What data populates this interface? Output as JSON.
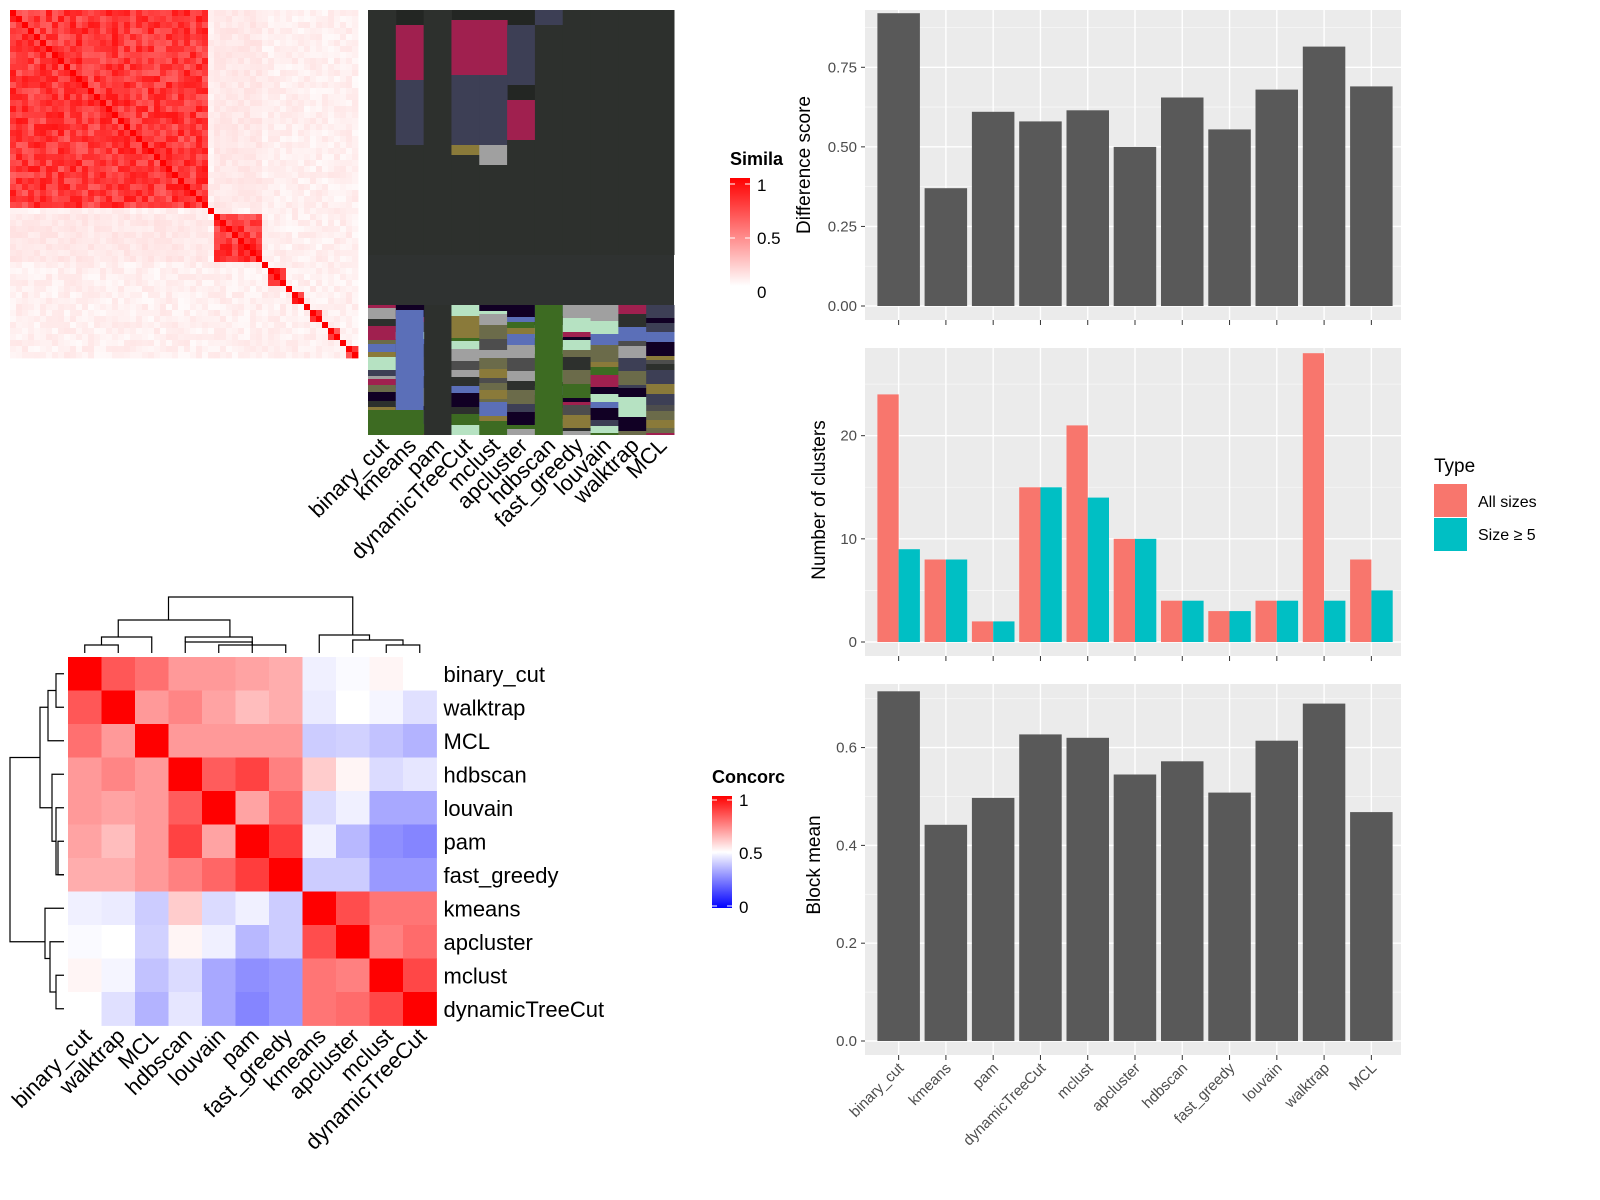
{
  "colors": {
    "panel_bg": "#ebebeb",
    "grid_major": "#ffffff",
    "bar_fill": "#595959",
    "all_sizes": "#f8766d",
    "size_ge5": "#00bfc4",
    "sim_high": "#ff0000",
    "conc_low": "#0000ff",
    "conc_mid": "#ffffff",
    "conc_high": "#ff0000",
    "cluster_dark": "#232623"
  },
  "similarity_legend": {
    "title": "Simila",
    "ticks": [
      "1",
      "0.5",
      "0"
    ]
  },
  "concordance_legend": {
    "title": "Concorc",
    "ticks": [
      "1",
      "0.5",
      "0"
    ]
  },
  "method_strip_labels": [
    "binary_cut",
    "kmeans",
    "pam",
    "dynamicTreeCut",
    "mclust",
    "apcluster",
    "hdbscan",
    "fast_greedy",
    "louvain",
    "walktrap",
    "MCL"
  ],
  "concordance": {
    "methods": [
      "binary_cut",
      "walktrap",
      "MCL",
      "hdbscan",
      "louvain",
      "pam",
      "fast_greedy",
      "kmeans",
      "apcluster",
      "mclust",
      "dynamicTreeCut"
    ],
    "matrix": [
      [
        1.0,
        0.83,
        0.78,
        0.7,
        0.7,
        0.68,
        0.66,
        0.47,
        0.49,
        0.52,
        0.5
      ],
      [
        0.83,
        1.0,
        0.7,
        0.74,
        0.68,
        0.63,
        0.66,
        0.46,
        0.5,
        0.48,
        0.44
      ],
      [
        0.78,
        0.7,
        1.0,
        0.7,
        0.7,
        0.7,
        0.7,
        0.4,
        0.41,
        0.38,
        0.35
      ],
      [
        0.7,
        0.74,
        0.7,
        1.0,
        0.82,
        0.87,
        0.75,
        0.6,
        0.52,
        0.43,
        0.45
      ],
      [
        0.7,
        0.68,
        0.7,
        0.82,
        1.0,
        0.68,
        0.8,
        0.43,
        0.47,
        0.33,
        0.33
      ],
      [
        0.68,
        0.63,
        0.7,
        0.87,
        0.68,
        1.0,
        0.88,
        0.47,
        0.36,
        0.28,
        0.26
      ],
      [
        0.66,
        0.66,
        0.7,
        0.75,
        0.8,
        0.88,
        1.0,
        0.4,
        0.4,
        0.3,
        0.3
      ],
      [
        0.47,
        0.46,
        0.4,
        0.6,
        0.43,
        0.47,
        0.4,
        1.0,
        0.85,
        0.77,
        0.77
      ],
      [
        0.49,
        0.5,
        0.41,
        0.52,
        0.47,
        0.36,
        0.4,
        0.85,
        1.0,
        0.75,
        0.79
      ],
      [
        0.52,
        0.48,
        0.38,
        0.43,
        0.33,
        0.28,
        0.3,
        0.77,
        0.75,
        1.0,
        0.86
      ],
      [
        0.5,
        0.44,
        0.35,
        0.45,
        0.33,
        0.26,
        0.3,
        0.77,
        0.79,
        0.86,
        1.0
      ]
    ]
  },
  "chart_data": [
    {
      "type": "bar",
      "categories": [
        "binary_cut",
        "kmeans",
        "pam",
        "dynamicTreeCut",
        "mclust",
        "apcluster",
        "hdbscan",
        "fast_greedy",
        "louvain",
        "walktrap",
        "MCL"
      ],
      "values": [
        0.92,
        0.37,
        0.61,
        0.58,
        0.615,
        0.5,
        0.655,
        0.555,
        0.68,
        0.815,
        0.69
      ],
      "xlabel": "",
      "ylabel": "Difference score",
      "ylim": [
        0,
        0.93
      ],
      "yticks": [
        0.0,
        0.25,
        0.5,
        0.75
      ],
      "ytick_labels": [
        "0.00",
        "0.25",
        "0.50",
        "0.75"
      ],
      "show_x_labels": false
    },
    {
      "type": "bar",
      "categories": [
        "binary_cut",
        "kmeans",
        "pam",
        "dynamicTreeCut",
        "mclust",
        "apcluster",
        "hdbscan",
        "fast_greedy",
        "louvain",
        "walktrap",
        "MCL"
      ],
      "series": [
        {
          "name": "All sizes",
          "values": [
            24,
            8,
            2,
            15,
            21,
            10,
            4,
            3,
            4,
            28,
            8
          ]
        },
        {
          "name": "Size ≥ 5",
          "values": [
            9,
            8,
            2,
            15,
            14,
            10,
            4,
            3,
            4,
            4,
            5
          ]
        }
      ],
      "xlabel": "",
      "ylabel": "Number of clusters",
      "ylim": [
        0,
        28.5
      ],
      "yticks": [
        0,
        10,
        20
      ],
      "ytick_labels": [
        "0",
        "10",
        "20"
      ],
      "legend": {
        "title": "Type",
        "position": "right"
      },
      "show_x_labels": false
    },
    {
      "type": "bar",
      "categories": [
        "binary_cut",
        "kmeans",
        "pam",
        "dynamicTreeCut",
        "mclust",
        "apcluster",
        "hdbscan",
        "fast_greedy",
        "louvain",
        "walktrap",
        "MCL"
      ],
      "values": [
        0.715,
        0.442,
        0.497,
        0.627,
        0.62,
        0.545,
        0.572,
        0.508,
        0.614,
        0.69,
        0.468
      ],
      "xlabel": "",
      "ylabel": "Block mean",
      "ylim": [
        0,
        0.73
      ],
      "yticks": [
        0.0,
        0.2,
        0.4,
        0.6
      ],
      "ytick_labels": [
        "0.0",
        "0.2",
        "0.4",
        "0.6"
      ],
      "show_x_labels": true
    }
  ]
}
